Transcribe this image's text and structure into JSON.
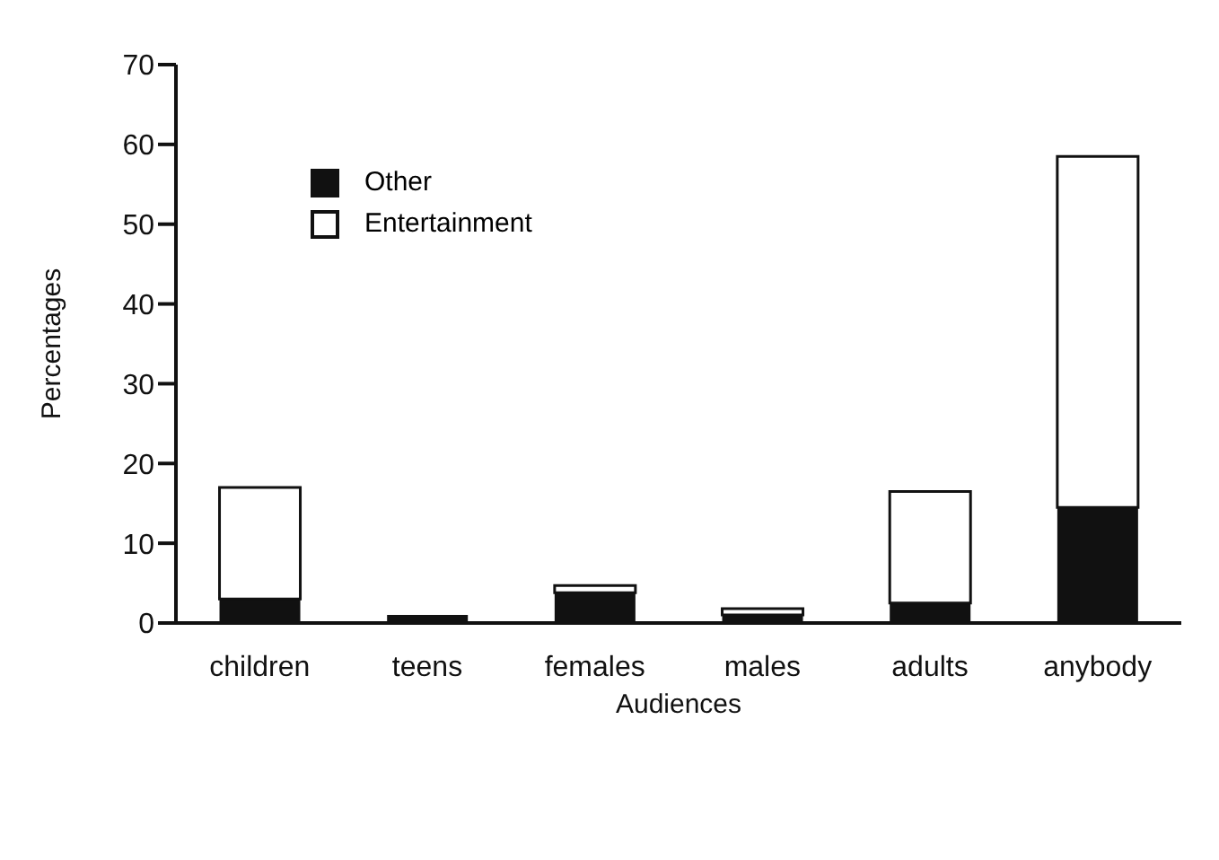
{
  "chart_data": {
    "type": "bar",
    "xlabel": "Audiences",
    "ylabel": "Percentages",
    "stacked": true,
    "legend": "top left",
    "grid": false,
    "categories": [
      "children",
      "teens",
      "females",
      "males",
      "adults",
      "anybody"
    ],
    "series": [
      {
        "name": "Other",
        "color": "#111111",
        "values": [
          3,
          1,
          3.8,
          1,
          2.5,
          14.5
        ]
      },
      {
        "name": "Entertainment",
        "color": "#ffffff",
        "values": [
          14,
          0,
          0.9,
          0.8,
          14,
          44
        ]
      }
    ],
    "ylim": [
      0,
      70
    ],
    "yticks": [
      0,
      10,
      20,
      30,
      40,
      50,
      60,
      70
    ]
  }
}
